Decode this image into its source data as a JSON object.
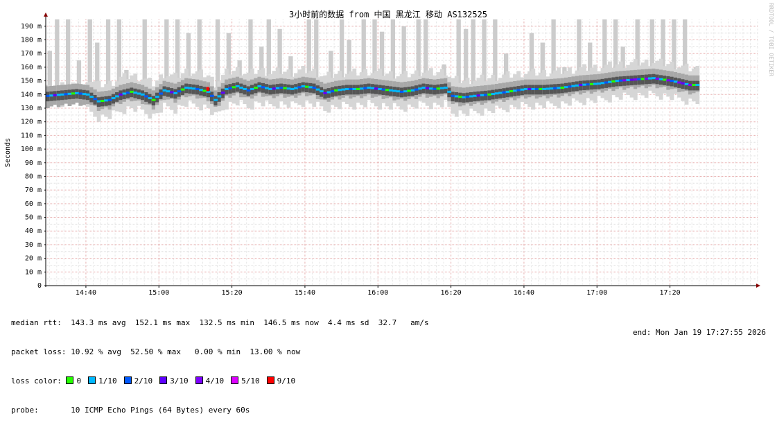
{
  "chart_data": {
    "type": "area",
    "title": "3小时前的数据 from 中国 黑龙江 移动 AS132525",
    "ylabel": "Seconds",
    "ylim": [
      0,
      195
    ],
    "yticks": [
      {
        "v": 0,
        "t": "0"
      },
      {
        "v": 10,
        "t": "10 m"
      },
      {
        "v": 20,
        "t": "20 m"
      },
      {
        "v": 30,
        "t": "30 m"
      },
      {
        "v": 40,
        "t": "40 m"
      },
      {
        "v": 50,
        "t": "50 m"
      },
      {
        "v": 60,
        "t": "60 m"
      },
      {
        "v": 70,
        "t": "70 m"
      },
      {
        "v": 80,
        "t": "80 m"
      },
      {
        "v": 90,
        "t": "90 m"
      },
      {
        "v": 100,
        "t": "100 m"
      },
      {
        "v": 110,
        "t": "110 m"
      },
      {
        "v": 120,
        "t": "120 m"
      },
      {
        "v": 130,
        "t": "130 m"
      },
      {
        "v": 140,
        "t": "140 m"
      },
      {
        "v": 150,
        "t": "150 m"
      },
      {
        "v": 160,
        "t": "160 m"
      },
      {
        "v": 170,
        "t": "170 m"
      },
      {
        "v": 180,
        "t": "180 m"
      },
      {
        "v": 190,
        "t": "190 m"
      }
    ],
    "xlim_min": [
      -11,
      184
    ],
    "xticks": [
      {
        "min": 0,
        "t": "14:40"
      },
      {
        "min": 20,
        "t": "15:00"
      },
      {
        "min": 40,
        "t": "15:20"
      },
      {
        "min": 60,
        "t": "15:40"
      },
      {
        "min": 80,
        "t": "16:00"
      },
      {
        "min": 100,
        "t": "16:20"
      },
      {
        "min": 120,
        "t": "16:40"
      },
      {
        "min": 140,
        "t": "17:00"
      },
      {
        "min": 160,
        "t": "17:20"
      }
    ],
    "grid": true,
    "median_keys": [
      [
        -11,
        139
      ],
      [
        -7,
        140
      ],
      [
        -3,
        141
      ],
      [
        0,
        140
      ],
      [
        3,
        135
      ],
      [
        6,
        136
      ],
      [
        9,
        140
      ],
      [
        12,
        142
      ],
      [
        15,
        140
      ],
      [
        18,
        136
      ],
      [
        21,
        143
      ],
      [
        24,
        141
      ],
      [
        27,
        145
      ],
      [
        30,
        144
      ],
      [
        33,
        142
      ],
      [
        35,
        136
      ],
      [
        38,
        144
      ],
      [
        41,
        146
      ],
      [
        44,
        143
      ],
      [
        47,
        146
      ],
      [
        50,
        144
      ],
      [
        53,
        145
      ],
      [
        56,
        144
      ],
      [
        59,
        146
      ],
      [
        62,
        145
      ],
      [
        65,
        141
      ],
      [
        68,
        143
      ],
      [
        71,
        144
      ],
      [
        74,
        144
      ],
      [
        77,
        145
      ],
      [
        80,
        144
      ],
      [
        83,
        143
      ],
      [
        86,
        142
      ],
      [
        89,
        143
      ],
      [
        92,
        145
      ],
      [
        95,
        144
      ],
      [
        98,
        145
      ],
      [
        100,
        139
      ],
      [
        103,
        138
      ],
      [
        106,
        139
      ],
      [
        110,
        140
      ],
      [
        115,
        142
      ],
      [
        120,
        144
      ],
      [
        125,
        144
      ],
      [
        130,
        145
      ],
      [
        135,
        147
      ],
      [
        140,
        148
      ],
      [
        145,
        150
      ],
      [
        150,
        151
      ],
      [
        155,
        152
      ],
      [
        160,
        150
      ],
      [
        165,
        147
      ],
      [
        168,
        147
      ]
    ],
    "spike_tops": [
      {
        "min": -10,
        "v": 172
      },
      {
        "min": -8,
        "v": 198
      },
      {
        "min": -5,
        "v": 198
      },
      {
        "min": -2,
        "v": 165
      },
      {
        "min": 1,
        "v": 198
      },
      {
        "min": 3,
        "v": 178
      },
      {
        "min": 6,
        "v": 198
      },
      {
        "min": 9,
        "v": 198
      },
      {
        "min": 11,
        "v": 158
      },
      {
        "min": 16,
        "v": 198
      },
      {
        "min": 22,
        "v": 198
      },
      {
        "min": 25,
        "v": 198
      },
      {
        "min": 28,
        "v": 185
      },
      {
        "min": 31,
        "v": 198
      },
      {
        "min": 36,
        "v": 198
      },
      {
        "min": 39,
        "v": 185
      },
      {
        "min": 42,
        "v": 165
      },
      {
        "min": 45,
        "v": 198
      },
      {
        "min": 48,
        "v": 175
      },
      {
        "min": 50,
        "v": 198
      },
      {
        "min": 53,
        "v": 188
      },
      {
        "min": 56,
        "v": 168
      },
      {
        "min": 61,
        "v": 198
      },
      {
        "min": 63,
        "v": 198
      },
      {
        "min": 67,
        "v": 172
      },
      {
        "min": 70,
        "v": 198
      },
      {
        "min": 72,
        "v": 180
      },
      {
        "min": 76,
        "v": 198
      },
      {
        "min": 79,
        "v": 198
      },
      {
        "min": 81,
        "v": 186
      },
      {
        "min": 84,
        "v": 198
      },
      {
        "min": 87,
        "v": 190
      },
      {
        "min": 91,
        "v": 198
      },
      {
        "min": 93,
        "v": 198
      },
      {
        "min": 98,
        "v": 162
      },
      {
        "min": 102,
        "v": 198
      },
      {
        "min": 104,
        "v": 188
      },
      {
        "min": 106,
        "v": 198
      },
      {
        "min": 109,
        "v": 198
      },
      {
        "min": 112,
        "v": 198
      },
      {
        "min": 115,
        "v": 170
      },
      {
        "min": 122,
        "v": 185
      },
      {
        "min": 125,
        "v": 178
      },
      {
        "min": 128,
        "v": 198
      },
      {
        "min": 131,
        "v": 160
      },
      {
        "min": 135,
        "v": 198
      },
      {
        "min": 138,
        "v": 178
      },
      {
        "min": 142,
        "v": 198
      },
      {
        "min": 145,
        "v": 198
      },
      {
        "min": 147,
        "v": 175
      },
      {
        "min": 151,
        "v": 198
      },
      {
        "min": 155,
        "v": 198
      },
      {
        "min": 158,
        "v": 198
      },
      {
        "min": 161,
        "v": 198
      },
      {
        "min": 164,
        "v": 198
      },
      {
        "min": 167,
        "v": 160
      }
    ],
    "red_marks": [
      {
        "min": 33,
        "v": 144
      }
    ],
    "loss_colors": [
      {
        "label": "0",
        "color": "#26ff00"
      },
      {
        "label": "1/10",
        "color": "#00b8ff"
      },
      {
        "label": "2/10",
        "color": "#0059ff"
      },
      {
        "label": "3/10",
        "color": "#5e00ff"
      },
      {
        "label": "4/10",
        "color": "#7e00ff"
      },
      {
        "label": "5/10",
        "color": "#dd00ff"
      },
      {
        "label": "9/10",
        "color": "#ff0000"
      }
    ]
  },
  "stats": {
    "median_rtt": "median rtt:  143.3 ms avg  152.1 ms max  132.5 ms min  146.5 ms now  4.4 ms sd  32.7   am/s",
    "packet_loss": "packet loss: 10.92 % avg  52.50 % max   0.00 % min  13.00 % now",
    "loss_color_label": "loss color:",
    "probe": "probe:       10 ICMP Echo Pings (64 Bytes) every 60s",
    "end": "end: Mon Jan 19 17:27:55 2026"
  },
  "side_label": "RRDTOOL / TOBI OETIKER"
}
